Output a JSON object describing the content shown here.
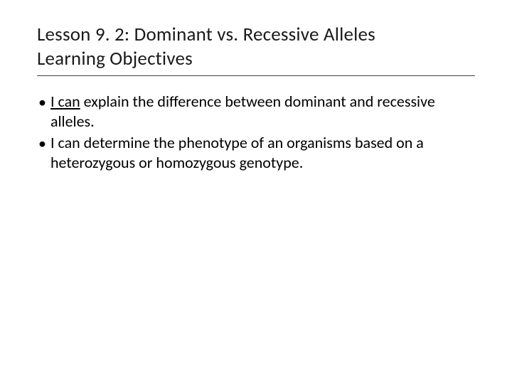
{
  "slide": {
    "background_color": "#ffffff",
    "text_color": "#000000",
    "title": {
      "line1": "Lesson 9. 2: Dominant vs. Recessive Alleles",
      "line2": "Learning Objectives",
      "fontsize": 27,
      "underline_color": "#404040"
    },
    "bullets": [
      {
        "underlined_prefix": "I can",
        "rest": " explain the difference between dominant and recessive alleles."
      },
      {
        "underlined_prefix": "",
        "rest": "I can determine the phenotype of an organisms based on a heterozygous or homozygous genotype."
      }
    ],
    "bullet_fontsize": 22,
    "bullet_marker": "•"
  }
}
